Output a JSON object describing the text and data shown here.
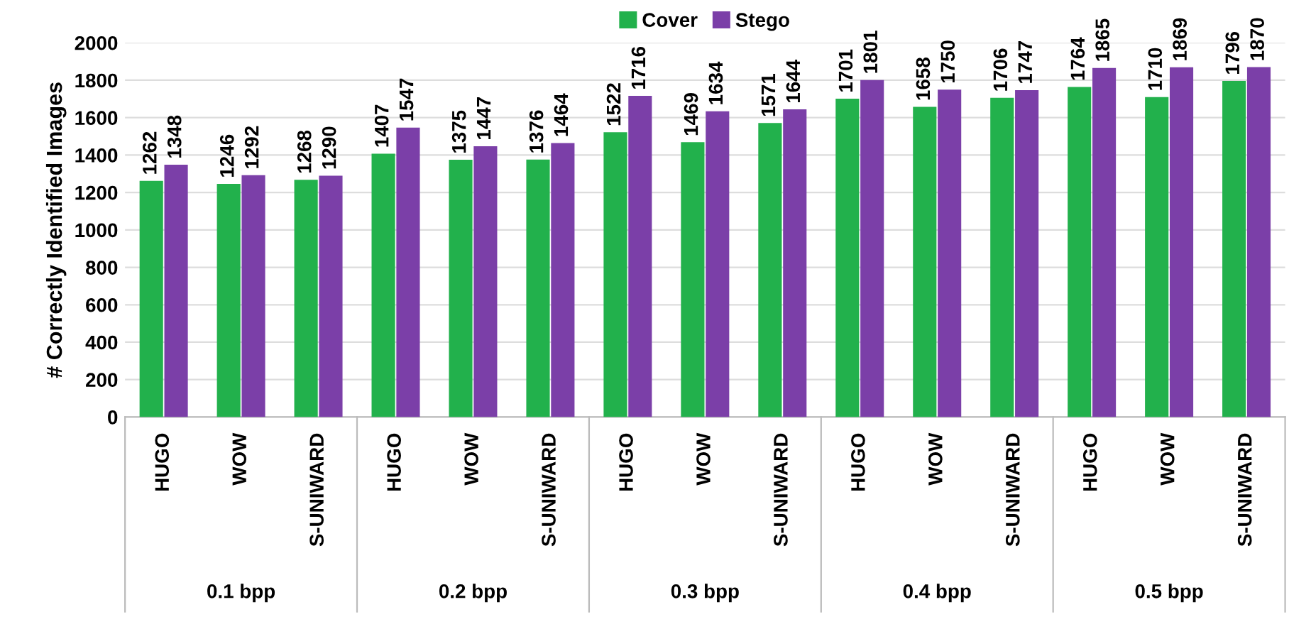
{
  "chart_data": {
    "type": "bar",
    "ylabel": "# Correctly Identified Images",
    "categories": [
      "HUGO",
      "WOW",
      "S-UNIWARD",
      "HUGO",
      "WOW",
      "S-UNIWARD",
      "HUGO",
      "WOW",
      "S-UNIWARD",
      "HUGO",
      "WOW",
      "S-UNIWARD",
      "HUGO",
      "WOW",
      "S-UNIWARD"
    ],
    "series": [
      {
        "name": "Cover",
        "color": "#22b14c",
        "values": [
          1262,
          1246,
          1268,
          1407,
          1375,
          1376,
          1522,
          1469,
          1571,
          1701,
          1658,
          1706,
          1764,
          1710,
          1796
        ]
      },
      {
        "name": "Stego",
        "color": "#7b3fa8",
        "values": [
          1348,
          1292,
          1290,
          1547,
          1447,
          1464,
          1716,
          1634,
          1644,
          1801,
          1750,
          1747,
          1865,
          1869,
          1870
        ]
      }
    ],
    "annotations": [
      "0.1 bpp",
      "0.2 bpp",
      "0.3 bpp",
      "0.4 bpp",
      "0.5 bpp"
    ],
    "ylim": [
      0,
      2000
    ],
    "yticks": [
      0,
      200,
      400,
      600,
      800,
      1000,
      1200,
      1400,
      1600,
      1800,
      2000
    ],
    "grid": "y",
    "legend": "top",
    "data_labels": true
  }
}
